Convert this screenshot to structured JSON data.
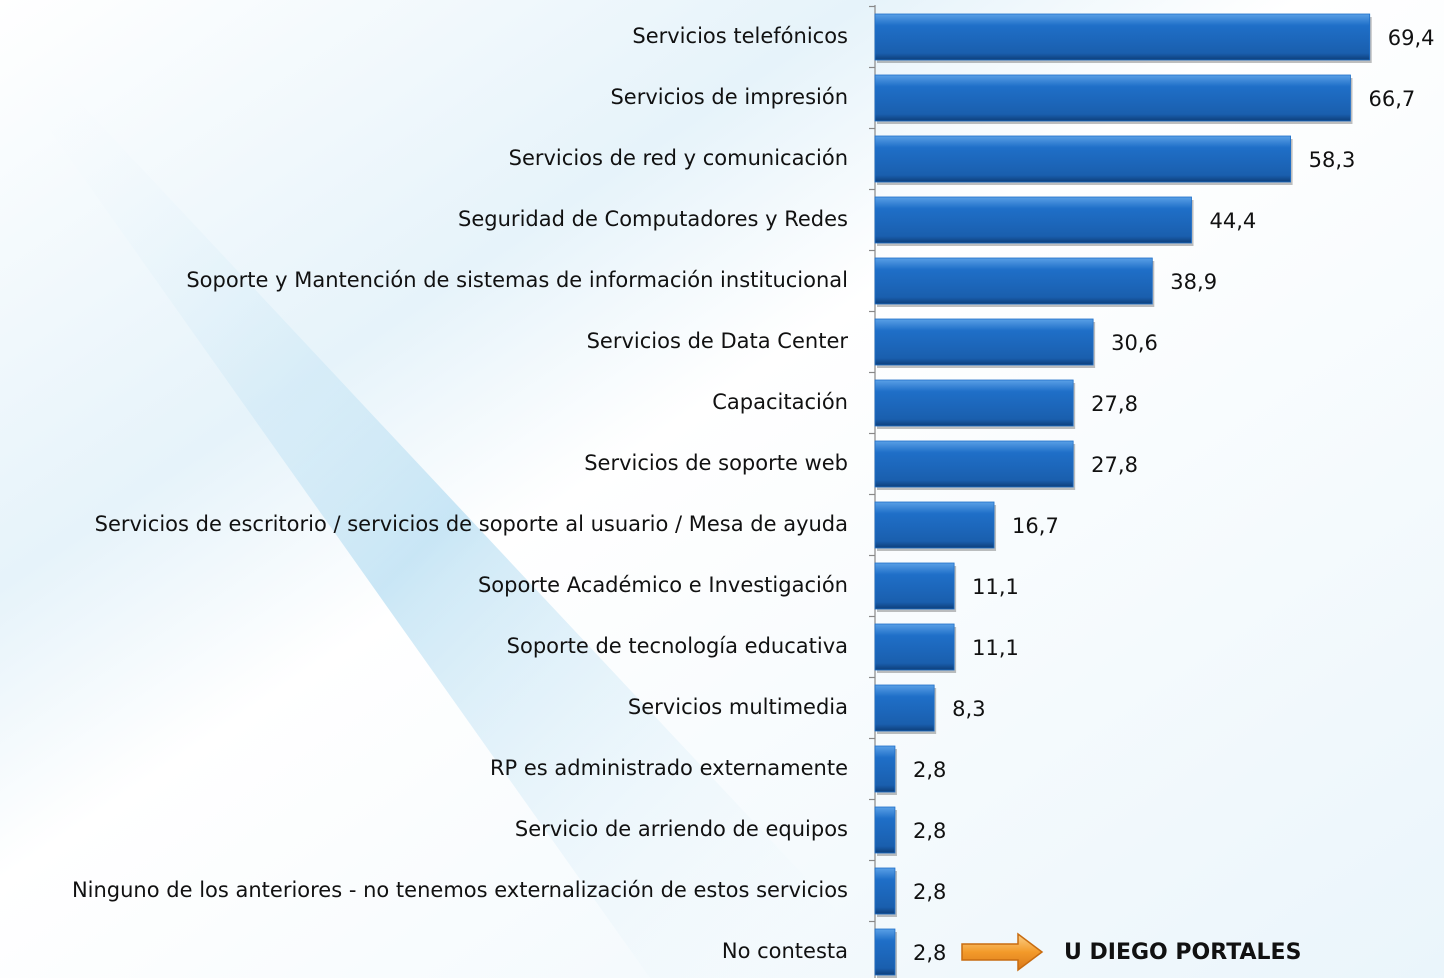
{
  "chart_data": {
    "type": "bar",
    "orientation": "horizontal",
    "categories": [
      "Servicios telefónicos",
      "Servicios de impresión",
      "Servicios de red y comunicación",
      "Seguridad de Computadores y Redes",
      "Soporte y Mantención de sistemas de información institucional",
      "Servicios de Data Center",
      "Capacitación",
      "Servicios de soporte web",
      "Servicios de escritorio / servicios de soporte al usuario / Mesa de ayuda",
      "Soporte Académico e Investigación",
      "Soporte de tecnología educativa",
      "Servicios multimedia",
      "RP es administrado externamente",
      "Servicio de arriendo de equipos",
      "Ninguno de los anteriores - no tenemos externalización de estos servicios",
      "No contesta"
    ],
    "values": [
      69.4,
      66.7,
      58.3,
      44.4,
      38.9,
      30.6,
      27.8,
      27.8,
      16.7,
      11.1,
      11.1,
      8.3,
      2.8,
      2.8,
      2.8,
      2.8
    ],
    "value_labels": [
      "69,4",
      "66,7",
      "58,3",
      "44,4",
      "38,9",
      "30,6",
      "27,8",
      "27,8",
      "16,7",
      "11,1",
      "11,1",
      "8,3",
      "2,8",
      "2,8",
      "2,8",
      "2,8"
    ],
    "color": "#1f6fc8",
    "xlim": [
      0,
      70
    ],
    "annotation": "U DIEGO PORTALES"
  }
}
